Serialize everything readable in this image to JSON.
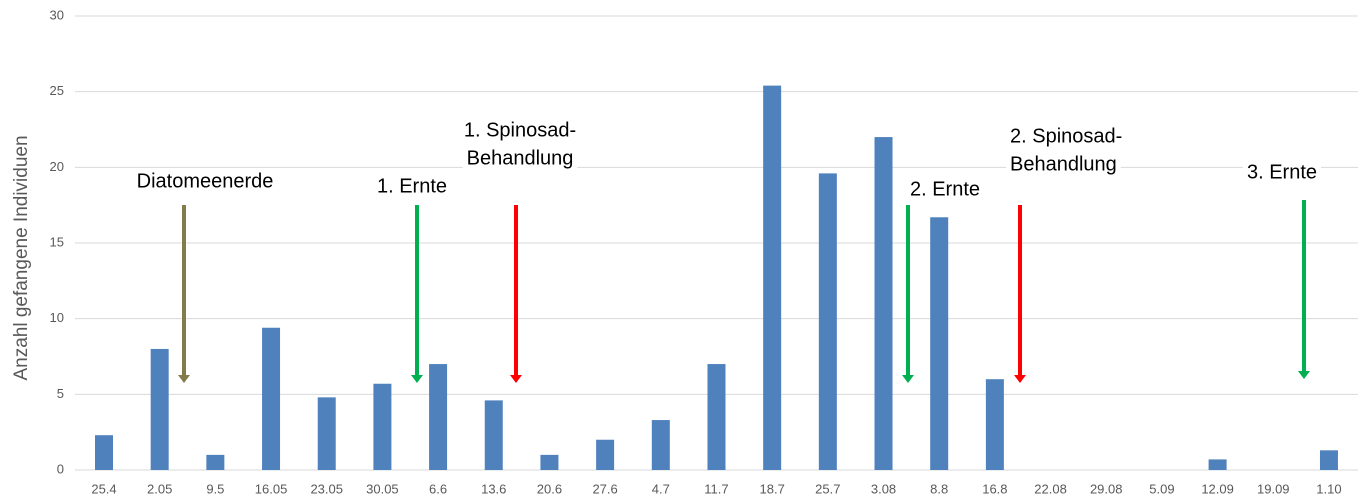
{
  "chart_data": {
    "type": "bar",
    "y_axis_label": "Anzahl gefangene Individuen",
    "categories": [
      "25.4",
      "2.05",
      "9.5",
      "16.05",
      "23.05",
      "30.05",
      "6.6",
      "13.6",
      "20.6",
      "27.6",
      "4.7",
      "11.7",
      "18.7",
      "25.7",
      "3.08",
      "8.8",
      "16.8",
      "22.08",
      "29.08",
      "5.09",
      "12.09",
      "19.09",
      "1.10"
    ],
    "values": [
      2.3,
      8.0,
      1.0,
      9.4,
      4.8,
      5.7,
      7.0,
      4.6,
      1.0,
      2.0,
      3.3,
      7.0,
      25.4,
      19.6,
      22.0,
      16.7,
      6.0,
      0,
      0,
      0,
      0.7,
      0,
      1.3
    ],
    "color": "#4f81bd",
    "ylim": [
      0,
      30
    ],
    "yticks": [
      0,
      5,
      10,
      15,
      20,
      25,
      30
    ],
    "grid": true,
    "annotations": [
      {
        "lines": [
          "Diatomeenerde"
        ],
        "color": "#847b4b"
      },
      {
        "lines": [
          "1. Ernte"
        ],
        "color": "#00b050"
      },
      {
        "lines": [
          "1. Spinosad-",
          "Behandlung"
        ],
        "color": "#ff0000"
      },
      {
        "lines": [
          "2. Ernte"
        ],
        "color": "#00b050"
      },
      {
        "lines": [
          "2. Spinosad-",
          "Behandlung"
        ],
        "color": "#ff0000"
      },
      {
        "lines": [
          "3. Ernte"
        ],
        "color": "#00b050"
      }
    ]
  }
}
